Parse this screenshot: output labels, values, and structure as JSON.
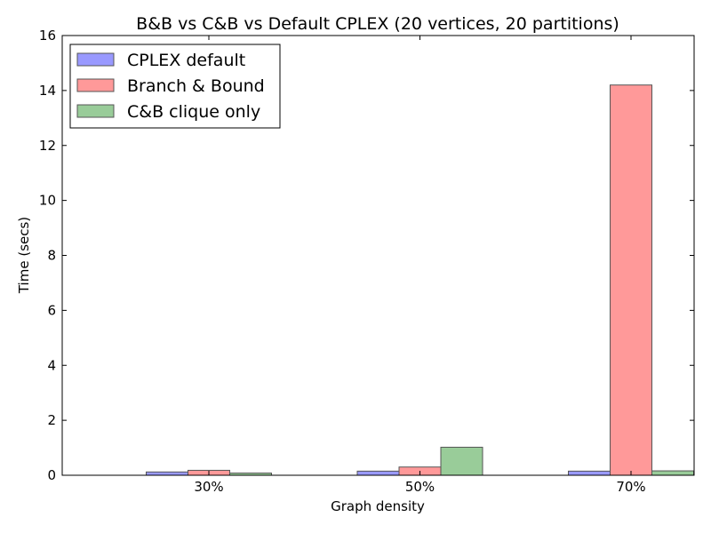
{
  "chart_data": {
    "type": "bar",
    "title": "B&B vs C&B vs Default CPLEX (20 vertices, 20 partitions)",
    "xlabel": "Graph density",
    "ylabel": "Time (secs)",
    "categories": [
      "30%",
      "50%",
      "70%"
    ],
    "ylim": [
      0,
      16
    ],
    "yticks": [
      0,
      2,
      4,
      6,
      8,
      10,
      12,
      14,
      16
    ],
    "grid": false,
    "legend_position": "top-left",
    "series": [
      {
        "name": "CPLEX default",
        "color": "#9999ff",
        "values": [
          0.12,
          0.15,
          0.15
        ]
      },
      {
        "name": "Branch & Bound",
        "color": "#ff9999",
        "values": [
          0.18,
          0.3,
          14.2
        ]
      },
      {
        "name": "C&B clique only",
        "color": "#99cc99",
        "values": [
          0.08,
          1.02,
          0.16
        ]
      }
    ]
  }
}
